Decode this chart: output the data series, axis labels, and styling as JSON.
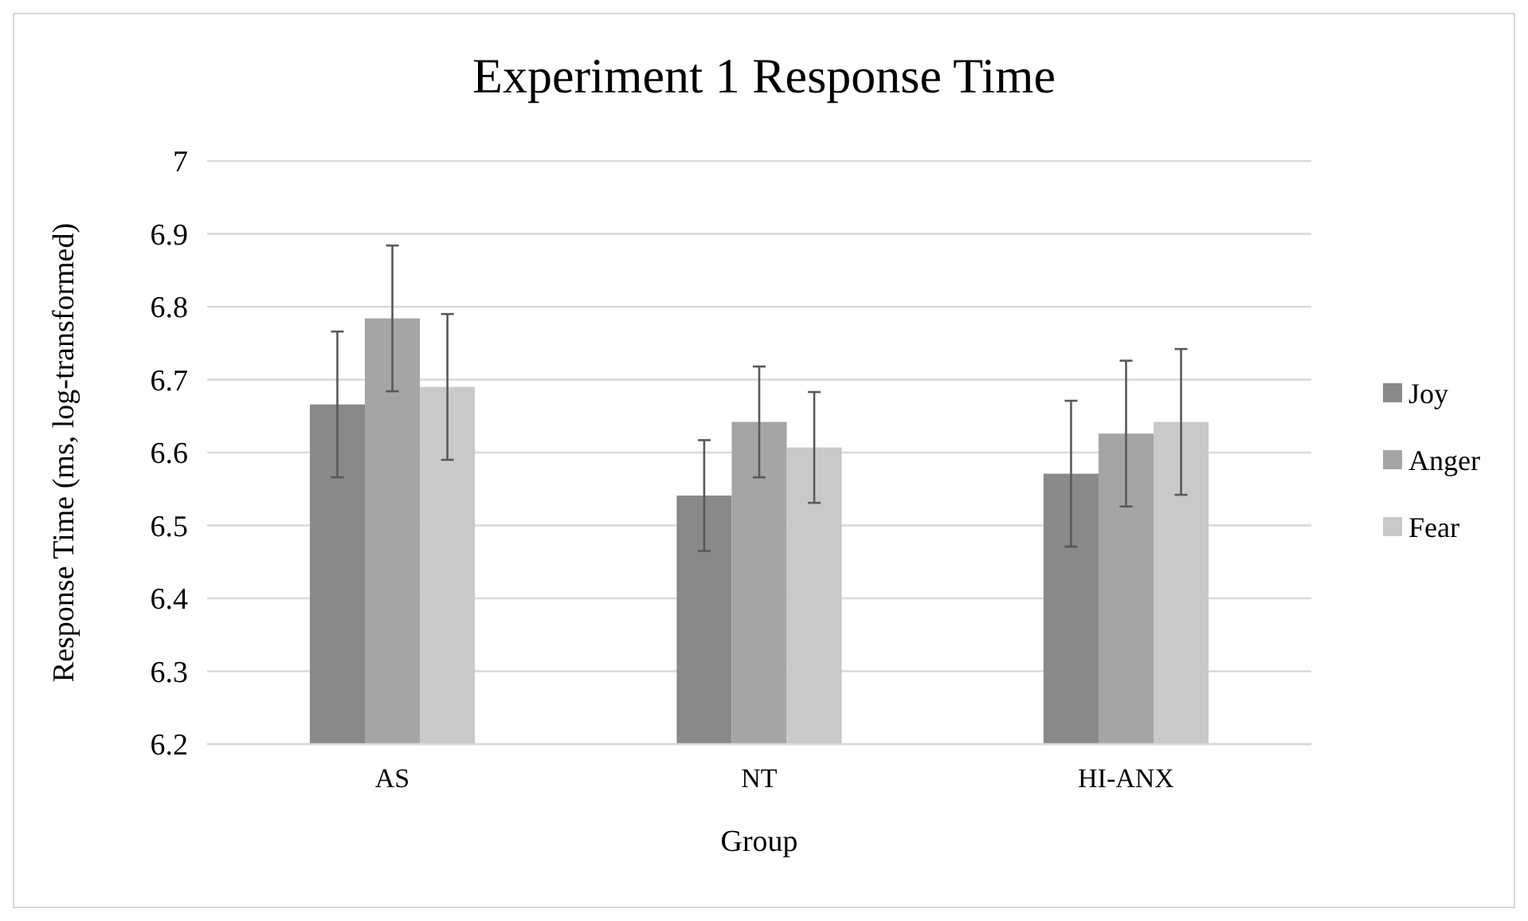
{
  "chart_data": {
    "type": "bar",
    "title": "Experiment 1 Response Time",
    "xlabel": "Group",
    "ylabel": "Response Time (ms, log-transformed)",
    "categories": [
      "AS",
      "NT",
      "HI-ANX"
    ],
    "series": [
      {
        "name": "Joy",
        "color": "#898989",
        "values": [
          6.666,
          6.541,
          6.571
        ],
        "errors": [
          0.1,
          0.076,
          0.1
        ]
      },
      {
        "name": "Anger",
        "color": "#a5a5a5",
        "values": [
          6.784,
          6.642,
          6.626
        ],
        "errors": [
          0.1,
          0.076,
          0.1
        ]
      },
      {
        "name": "Fear",
        "color": "#c9c9c9",
        "values": [
          6.69,
          6.607,
          6.642
        ],
        "errors": [
          0.1,
          0.076,
          0.1
        ]
      }
    ],
    "ylim": [
      6.2,
      7
    ],
    "yticks": [
      6.2,
      6.3,
      6.4,
      6.5,
      6.6,
      6.7,
      6.8,
      6.9,
      7
    ],
    "grid": "y",
    "legend": "right"
  }
}
